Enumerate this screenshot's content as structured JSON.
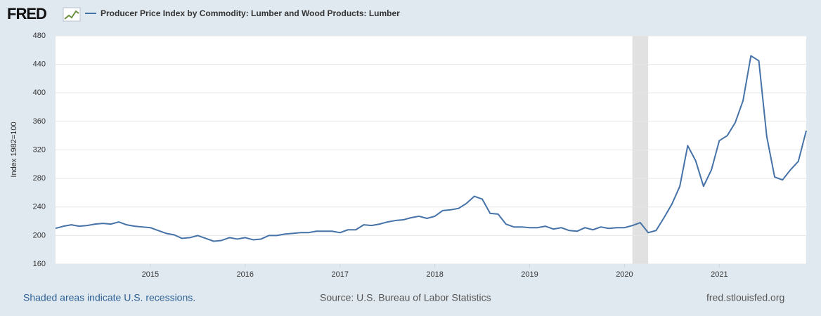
{
  "logo": "FRED",
  "chart_data": {
    "type": "line",
    "title": "Producer Price Index by Commodity: Lumber and Wood Products: Lumber",
    "y_label": "Index 1982=100",
    "x": [
      "2014-01",
      "2014-02",
      "2014-03",
      "2014-04",
      "2014-05",
      "2014-06",
      "2014-07",
      "2014-08",
      "2014-09",
      "2014-10",
      "2014-11",
      "2014-12",
      "2015-01",
      "2015-02",
      "2015-03",
      "2015-04",
      "2015-05",
      "2015-06",
      "2015-07",
      "2015-08",
      "2015-09",
      "2015-10",
      "2015-11",
      "2015-12",
      "2016-01",
      "2016-02",
      "2016-03",
      "2016-04",
      "2016-05",
      "2016-06",
      "2016-07",
      "2016-08",
      "2016-09",
      "2016-10",
      "2016-11",
      "2016-12",
      "2017-01",
      "2017-02",
      "2017-03",
      "2017-04",
      "2017-05",
      "2017-06",
      "2017-07",
      "2017-08",
      "2017-09",
      "2017-10",
      "2017-11",
      "2017-12",
      "2018-01",
      "2018-02",
      "2018-03",
      "2018-04",
      "2018-05",
      "2018-06",
      "2018-07",
      "2018-08",
      "2018-09",
      "2018-10",
      "2018-11",
      "2018-12",
      "2019-01",
      "2019-02",
      "2019-03",
      "2019-04",
      "2019-05",
      "2019-06",
      "2019-07",
      "2019-08",
      "2019-09",
      "2019-10",
      "2019-11",
      "2019-12",
      "2020-01",
      "2020-02",
      "2020-03",
      "2020-04",
      "2020-05",
      "2020-06",
      "2020-07",
      "2020-08",
      "2020-09",
      "2020-10",
      "2020-11",
      "2020-12",
      "2021-01",
      "2021-02",
      "2021-03",
      "2021-04",
      "2021-05",
      "2021-06",
      "2021-07",
      "2021-08",
      "2021-09",
      "2021-10",
      "2021-11",
      "2021-12"
    ],
    "series": [
      {
        "name": "Producer Price Index by Commodity: Lumber and Wood Products: Lumber",
        "color": "#4572a7",
        "values": [
          210,
          213,
          215,
          213,
          214,
          216,
          217,
          216,
          219,
          215,
          213,
          212,
          211,
          207,
          203,
          201,
          196,
          197,
          200,
          196,
          192,
          193,
          197,
          195,
          197,
          194,
          195,
          200,
          200,
          202,
          203,
          204,
          204,
          206,
          206,
          206,
          204,
          208,
          208,
          215,
          214,
          216,
          219,
          221,
          222,
          225,
          227,
          224,
          227,
          235,
          236,
          238,
          245,
          255,
          251,
          231,
          230,
          216,
          212,
          212,
          211,
          211,
          213,
          209,
          211,
          207,
          206,
          211,
          208,
          212,
          210,
          211,
          211,
          214,
          218,
          204,
          207,
          225,
          244,
          269,
          326,
          305,
          269,
          292,
          333,
          340,
          358,
          389,
          452,
          445,
          339,
          282,
          278,
          292,
          304,
          347
        ]
      }
    ],
    "xlim": [
      "2014-01",
      "2021-12"
    ],
    "xticks": [
      {
        "value": "2015-01",
        "label": "2015"
      },
      {
        "value": "2016-01",
        "label": "2016"
      },
      {
        "value": "2017-01",
        "label": "2017"
      },
      {
        "value": "2018-01",
        "label": "2018"
      },
      {
        "value": "2019-01",
        "label": "2019"
      },
      {
        "value": "2020-01",
        "label": "2020"
      },
      {
        "value": "2021-01",
        "label": "2021"
      }
    ],
    "ylim": [
      160,
      480
    ],
    "yticks": [
      160,
      200,
      240,
      280,
      320,
      360,
      400,
      440,
      480
    ],
    "grid": true,
    "recessions": [
      {
        "start": "2020-02",
        "end": "2020-04"
      }
    ],
    "recession_color": "#e1e1e1"
  },
  "footer": {
    "note": "Shaded areas indicate U.S. recessions.",
    "source": "Source: U.S. Bureau of Labor Statistics",
    "site": "fred.stlouisfed.org"
  }
}
